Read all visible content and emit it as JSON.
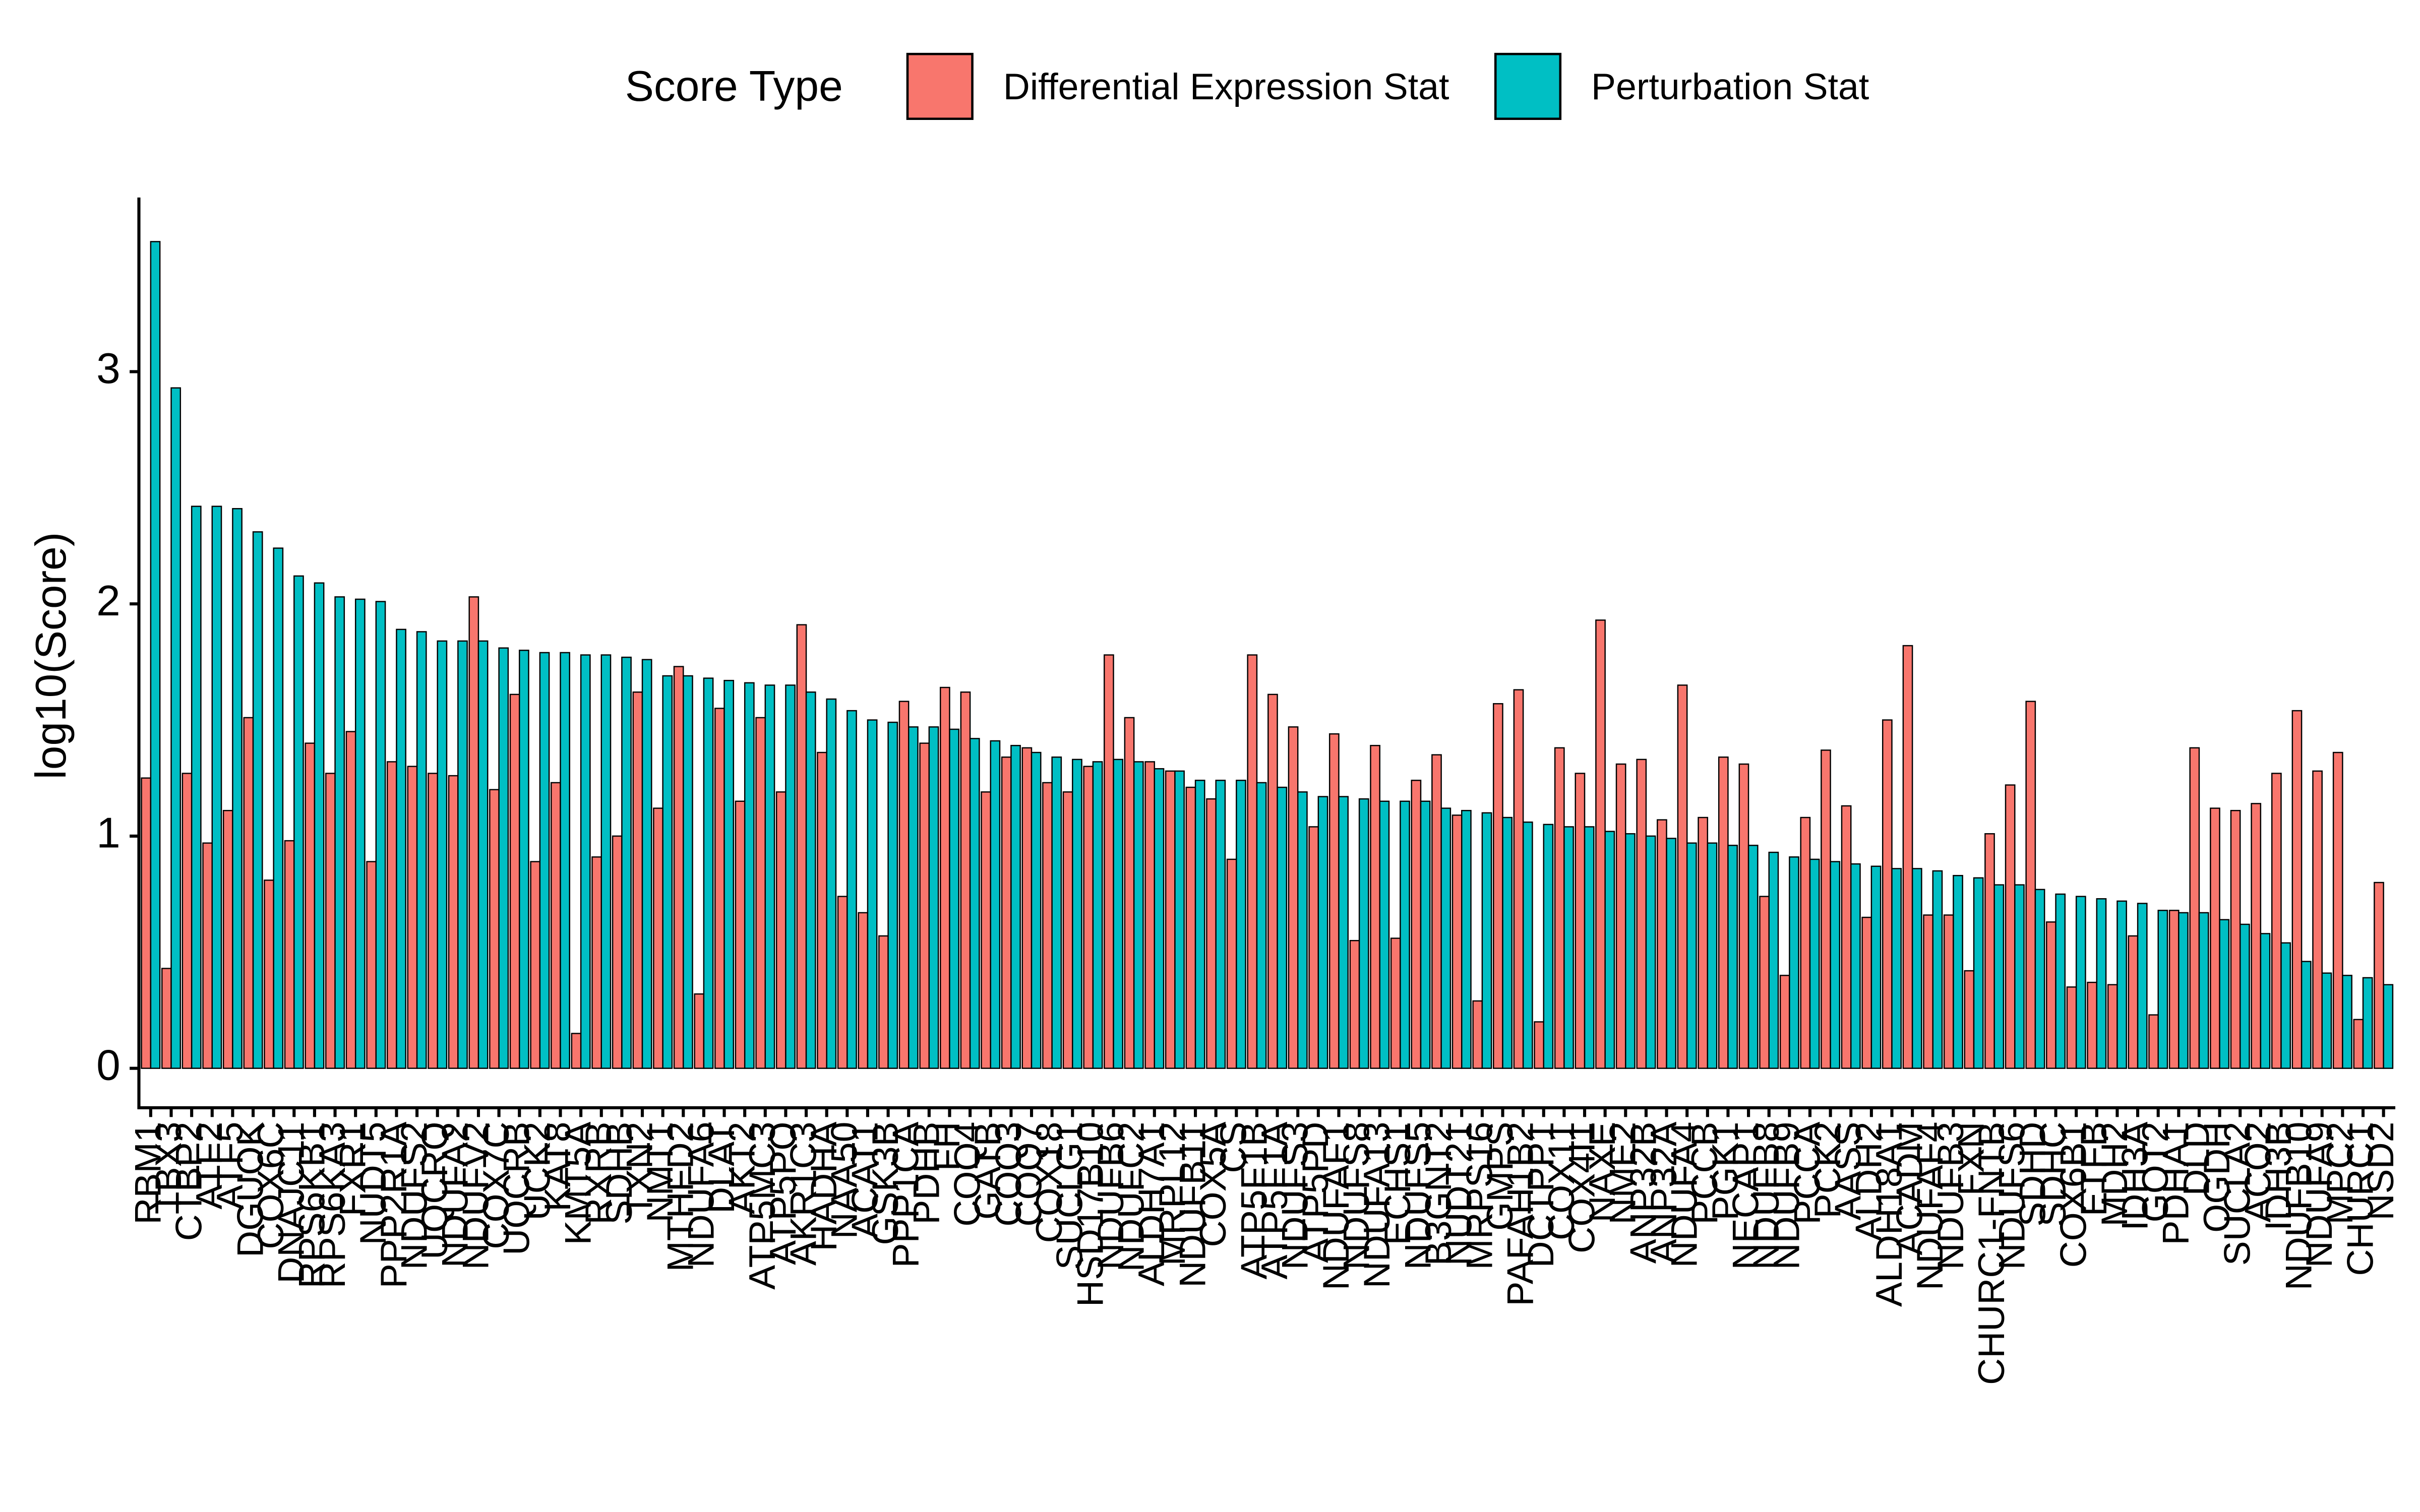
{
  "chart_data": {
    "type": "bar",
    "y_label": "log10(Score)",
    "legend_title": "Score Type",
    "legend_position": "top",
    "categories": [
      "RBM1",
      "TBX3",
      "CTBP2",
      "ATF2",
      "ATF5",
      "DGUOK",
      "COX6C",
      "DNAJC11",
      "RPS6KB1",
      "RPS6KA3",
      "FXR1",
      "NUDT5",
      "PPP2R1A",
      "NDUFS2",
      "UQCRQ",
      "NDUFA2",
      "NDUFV2",
      "COX7C",
      "UQCRB",
      "UCK2",
      "KAT8",
      "KMT5A",
      "RXRB",
      "SDHB",
      "TXN2",
      "NMT1",
      "MTHFD2",
      "NDUFA6",
      "DLAT",
      "AKT2",
      "ATP5MC3",
      "ATP5PO",
      "AKR1C3",
      "HADHA",
      "NAA50",
      "ACAT1",
      "GSK3B",
      "PPP1CA",
      "PDHB",
      "FH",
      "COQ4",
      "GATB",
      "COQ3",
      "COQ7",
      "COX18",
      "SUCLG1",
      "HSD17B10",
      "NDUFB6",
      "NDUFC2",
      "ALDH7A1",
      "MRPL12",
      "NDUFB11",
      "COX5A",
      "CS",
      "ATP5F1B",
      "ATP5F1A",
      "NDUFS3",
      "ATP5PD",
      "NDUFAF1",
      "NDUFS8",
      "NDUFA13",
      "ECHS1",
      "NDUFS5",
      "B3GNT2",
      "NUDT21",
      "MRPS16",
      "GMPS",
      "PAFAH1B2",
      "DCTPP1",
      "COX11",
      "COX4I1",
      "NAXE",
      "NME2",
      "ANP32B",
      "ANP32A",
      "NDUFA4",
      "PCCB",
      "PGK1",
      "NECAP1",
      "NDUFB8",
      "NDUFB9",
      "PCCA",
      "PCK2",
      "AASS",
      "ALDH2",
      "ALDH18A1",
      "ACADM",
      "NDUFAF4",
      "NDUFB3",
      "FXN",
      "CHURC1-FNTB",
      "NDUFS6",
      "SDHD",
      "SDHC",
      "COX6B1",
      "ETFB",
      "MDH2",
      "IDH3A",
      "GOT2",
      "PDHA1",
      "DLD",
      "OGDH",
      "SUCLA2",
      "ACO2",
      "IDH3B",
      "NDUFB10",
      "NDUFA9",
      "MPC2",
      "CHURC1",
      "NSD2"
    ],
    "series": [
      {
        "name": "Differential Expression Stat",
        "color": "#F8766D",
        "values": [
          1.25,
          0.43,
          1.27,
          0.97,
          1.11,
          1.51,
          0.81,
          0.98,
          1.4,
          1.27,
          1.45,
          0.89,
          1.32,
          1.3,
          1.27,
          1.26,
          2.03,
          1.2,
          1.61,
          0.89,
          1.23,
          0.15,
          0.91,
          1.0,
          1.62,
          1.12,
          1.73,
          0.32,
          1.55,
          1.15,
          1.51,
          1.19,
          1.91,
          1.36,
          0.74,
          0.67,
          0.57,
          1.58,
          1.4,
          1.64,
          1.62,
          1.19,
          1.34,
          1.38,
          1.23,
          1.19,
          1.3,
          1.78,
          1.51,
          1.32,
          1.28,
          1.21,
          1.16,
          0.9,
          1.78,
          1.61,
          1.47,
          1.04,
          1.44,
          0.55,
          1.39,
          0.56,
          1.24,
          1.35,
          1.09,
          0.29,
          1.57,
          1.63,
          0.2,
          1.38,
          1.27,
          1.93,
          1.31,
          1.33,
          1.07,
          1.65,
          1.08,
          1.34,
          1.31,
          0.74,
          0.4,
          1.08,
          1.37,
          1.13,
          0.65,
          1.5,
          1.82,
          0.66,
          0.66,
          0.42,
          1.01,
          1.22,
          1.58,
          0.63,
          0.35,
          0.37,
          0.36,
          0.57,
          0.23,
          0.68,
          1.38,
          1.12,
          1.11,
          1.14,
          1.27,
          1.54,
          1.28,
          1.36,
          0.21,
          0.8
        ]
      },
      {
        "name": "Perturbation Stat",
        "color": "#00BFC4",
        "values": [
          3.56,
          2.93,
          2.42,
          2.42,
          2.41,
          2.31,
          2.24,
          2.12,
          2.09,
          2.03,
          2.02,
          2.01,
          1.89,
          1.88,
          1.84,
          1.84,
          1.84,
          1.81,
          1.8,
          1.79,
          1.79,
          1.78,
          1.78,
          1.77,
          1.76,
          1.69,
          1.69,
          1.68,
          1.67,
          1.66,
          1.65,
          1.65,
          1.62,
          1.59,
          1.54,
          1.5,
          1.49,
          1.47,
          1.47,
          1.46,
          1.42,
          1.41,
          1.39,
          1.36,
          1.34,
          1.33,
          1.32,
          1.33,
          1.32,
          1.29,
          1.28,
          1.24,
          1.24,
          1.24,
          1.23,
          1.21,
          1.19,
          1.17,
          1.17,
          1.16,
          1.15,
          1.15,
          1.15,
          1.12,
          1.11,
          1.1,
          1.08,
          1.06,
          1.05,
          1.04,
          1.04,
          1.02,
          1.01,
          1.0,
          0.99,
          0.97,
          0.97,
          0.96,
          0.96,
          0.93,
          0.91,
          0.9,
          0.89,
          0.88,
          0.87,
          0.86,
          0.86,
          0.85,
          0.83,
          0.82,
          0.79,
          0.79,
          0.77,
          0.75,
          0.74,
          0.73,
          0.72,
          0.71,
          0.68,
          0.67,
          0.67,
          0.64,
          0.62,
          0.58,
          0.54,
          0.46,
          0.41,
          0.4,
          0.39,
          0.36
        ]
      }
    ],
    "ylim": [
      -0.17,
      3.75
    ],
    "yticks": [
      0,
      1,
      2,
      3
    ],
    "grid": false
  }
}
